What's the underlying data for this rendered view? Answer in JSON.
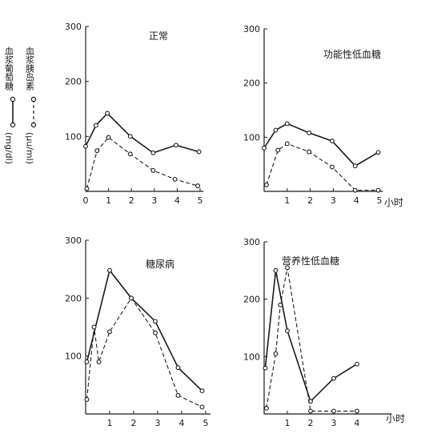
{
  "legend": {
    "glucose_label": "血浆葡萄糖",
    "glucose_unit": "(mg/dl)",
    "insulin_label": "血浆胰岛素",
    "insulin_unit": "(μu/ml)"
  },
  "chart_data": [
    {
      "type": "line",
      "title": "正常",
      "xlabel": "",
      "x_ticks": [
        "0",
        "1",
        "2",
        "3",
        "4",
        "5"
      ],
      "y_ticks": [
        "100",
        "200",
        "300"
      ],
      "xlim": [
        0,
        5.15
      ],
      "ylim": [
        0,
        300
      ],
      "series": [
        {
          "style": "solid",
          "color": "#1a1a1a",
          "x": [
            0,
            0.45,
            0.95,
            1.95,
            2.95,
            3.95,
            4.95
          ],
          "y": [
            82,
            120,
            142,
            100,
            70,
            84,
            72
          ]
        },
        {
          "style": "dashed",
          "color": "#1a1a1a",
          "x": [
            0.05,
            0.5,
            1.0,
            1.95,
            2.95,
            3.9,
            4.9
          ],
          "y": [
            5,
            74,
            98,
            68,
            38,
            22,
            10
          ]
        }
      ]
    },
    {
      "type": "line",
      "title": "功能性低血糖",
      "xlabel": "小时",
      "x_ticks": [
        "1",
        "2",
        "3",
        "4",
        "5"
      ],
      "y_ticks": [
        "100",
        "200",
        "300"
      ],
      "xlim": [
        0,
        5.15
      ],
      "ylim": [
        0,
        300
      ],
      "series": [
        {
          "style": "solid",
          "color": "#1a1a1a",
          "x": [
            0,
            0.5,
            1.0,
            1.95,
            2.95,
            3.95,
            4.95
          ],
          "y": [
            80,
            113,
            125,
            108,
            93,
            47,
            72
          ]
        },
        {
          "style": "dashed",
          "color": "#1a1a1a",
          "x": [
            0.1,
            0.6,
            1.0,
            1.95,
            2.95,
            3.95,
            4.95
          ],
          "y": [
            12,
            76,
            88,
            73,
            45,
            2,
            2
          ]
        }
      ]
    },
    {
      "type": "line",
      "title": "糖尿病",
      "xlabel": "",
      "x_ticks": [
        "1",
        "2",
        "3",
        "4",
        "5"
      ],
      "y_ticks": [
        "100",
        "200",
        "300"
      ],
      "xlim": [
        0,
        5.2
      ],
      "ylim": [
        0,
        300
      ],
      "series": [
        {
          "style": "solid",
          "color": "#1a1a1a",
          "x": [
            0.05,
            1.0,
            1.9,
            2.9,
            3.85,
            4.85
          ],
          "y": [
            90,
            248,
            200,
            160,
            80,
            40
          ]
        },
        {
          "style": "dashed",
          "color": "#1a1a1a",
          "x": [
            0.05,
            0.35,
            0.55,
            1.0,
            1.9,
            2.9,
            3.85,
            4.85
          ],
          "y": [
            25,
            150,
            90,
            142,
            200,
            140,
            32,
            12
          ]
        }
      ]
    },
    {
      "type": "line",
      "title": "营养性低血糖",
      "xlabel": "小时",
      "x_ticks": [
        "1",
        "2",
        "3",
        "4"
      ],
      "y_ticks": [
        "100",
        "200",
        "300"
      ],
      "xlim": [
        0,
        5.5
      ],
      "ylim": [
        0,
        300
      ],
      "series": [
        {
          "style": "solid",
          "color": "#1a1a1a",
          "x": [
            0.05,
            0.5,
            1.0,
            2.0,
            3.0,
            4.0
          ],
          "y": [
            80,
            250,
            145,
            22,
            62,
            87
          ]
        },
        {
          "style": "dashed",
          "color": "#1a1a1a",
          "x": [
            0.1,
            0.5,
            0.7,
            1.0,
            2.0,
            3.0,
            4.0
          ],
          "y": [
            10,
            105,
            190,
            255,
            5,
            5,
            5
          ]
        }
      ]
    }
  ]
}
